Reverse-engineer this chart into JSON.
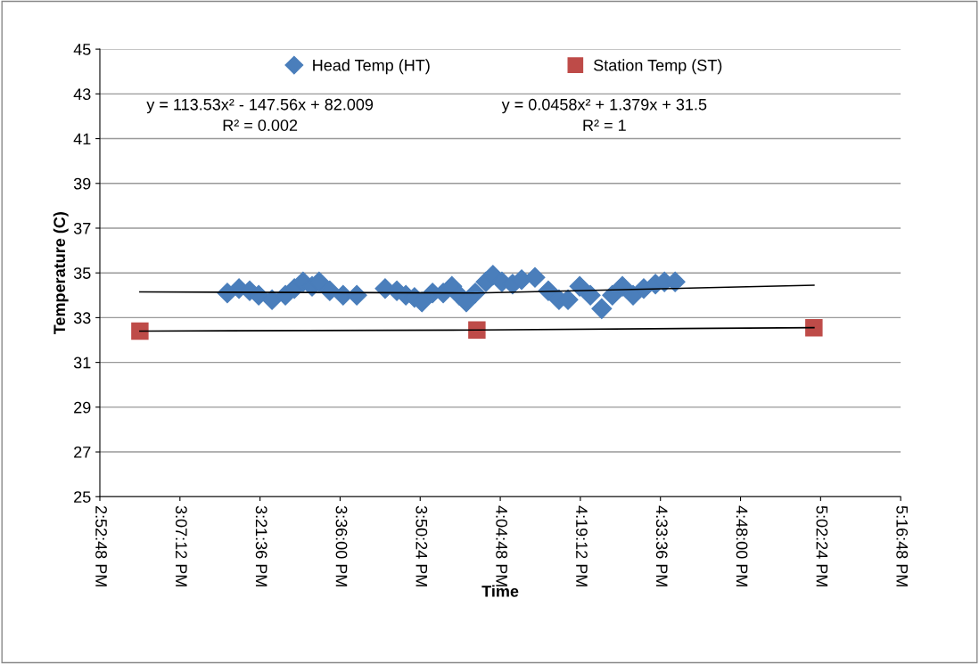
{
  "chart_data": {
    "type": "scatter",
    "xlabel": "Time",
    "ylabel": "Temperature (C)",
    "xlim": [
      14.88,
      17.28
    ],
    "ylim": [
      25,
      45
    ],
    "xticks": [
      {
        "value": 14.88,
        "label": "2:52:48 PM"
      },
      {
        "value": 15.12,
        "label": "3:07:12 PM"
      },
      {
        "value": 15.36,
        "label": "3:21:36 PM"
      },
      {
        "value": 15.6,
        "label": "3:36:00 PM"
      },
      {
        "value": 15.84,
        "label": "3:50:24 PM"
      },
      {
        "value": 16.08,
        "label": "4:04:48 PM"
      },
      {
        "value": 16.32,
        "label": "4:19:12 PM"
      },
      {
        "value": 16.56,
        "label": "4:33:36 PM"
      },
      {
        "value": 16.8,
        "label": "4:48:00 PM"
      },
      {
        "value": 17.04,
        "label": "5:02:24 PM"
      },
      {
        "value": 17.28,
        "label": "5:16:48 PM"
      }
    ],
    "yticks": [
      25,
      27,
      29,
      31,
      33,
      35,
      37,
      39,
      41,
      43,
      45
    ],
    "grid": "y",
    "legend": "top",
    "series": [
      {
        "name": "Head Temp (HT)",
        "color": "#4a7ebb",
        "marker": "diamond",
        "x": [
          15.262,
          15.297,
          15.329,
          15.356,
          15.396,
          15.436,
          15.463,
          15.489,
          15.516,
          15.537,
          15.569,
          15.609,
          15.65,
          15.735,
          15.77,
          15.797,
          15.823,
          15.845,
          15.877,
          15.909,
          15.935,
          15.957,
          15.978,
          16.005,
          16.037,
          16.058,
          16.085,
          16.117,
          16.144,
          16.184,
          16.224,
          16.256,
          16.283,
          16.318,
          16.35,
          16.384,
          16.416,
          16.446,
          16.478,
          16.51,
          16.545,
          16.572,
          16.604
        ],
        "values": [
          34.1,
          34.3,
          34.2,
          34.0,
          33.8,
          34.0,
          34.3,
          34.6,
          34.4,
          34.6,
          34.2,
          34.0,
          34.0,
          34.3,
          34.2,
          34.0,
          33.9,
          33.7,
          34.1,
          34.1,
          34.4,
          34.0,
          33.7,
          34.1,
          34.6,
          34.9,
          34.6,
          34.5,
          34.7,
          34.8,
          34.2,
          33.8,
          33.8,
          34.4,
          34.0,
          33.4,
          34.0,
          34.4,
          34.0,
          34.3,
          34.5,
          34.6,
          34.6
        ]
      },
      {
        "name": "Station Temp (ST)",
        "color": "#be4b48",
        "marker": "square",
        "x": [
          15.0,
          16.01,
          17.02
        ],
        "values": [
          32.4,
          32.45,
          32.55
        ]
      },
      {
        "type": "line",
        "color": "#000000",
        "marker": "none",
        "x": [
          15.0,
          16.01,
          17.02
        ],
        "values": [
          34.15,
          34.1,
          34.45
        ]
      },
      {
        "type": "line",
        "color": "#000000",
        "marker": "none",
        "x": [
          15.0,
          16.01,
          17.02
        ],
        "values": [
          32.4,
          32.45,
          32.55
        ]
      }
    ],
    "annotations": [
      "y = 113.53x² - 147.56x + 82.009\nR² = 0.002",
      "y = 0.0458x² + 1.379x + 31.5\nR² = 1"
    ]
  }
}
